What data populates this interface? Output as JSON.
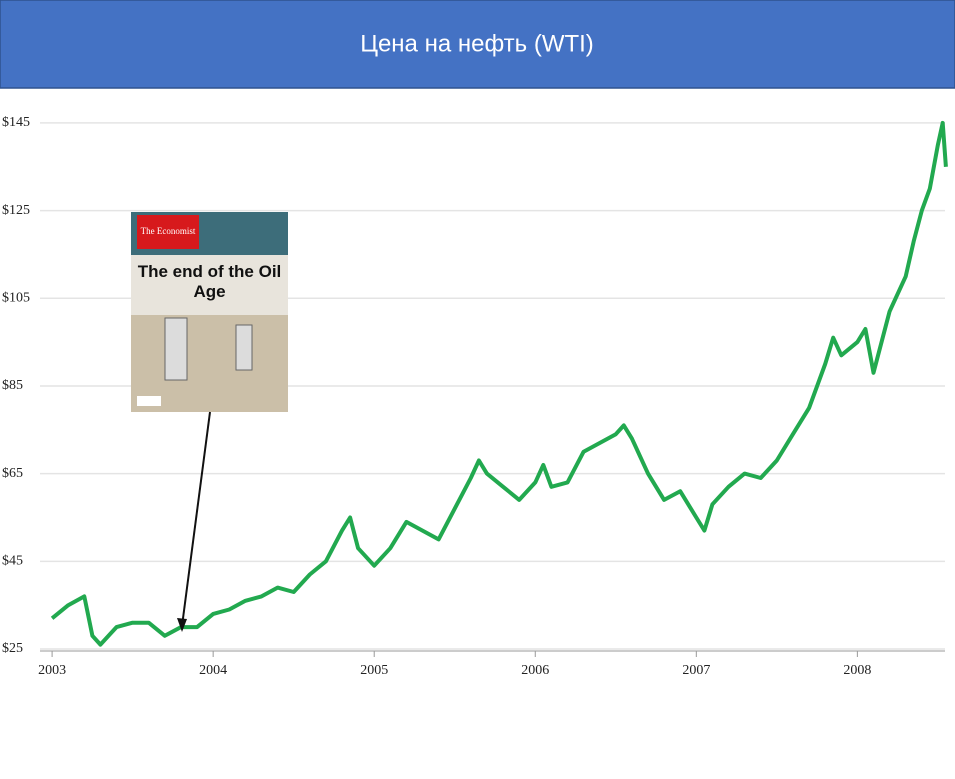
{
  "chart_data": {
    "type": "line",
    "title": "Цена на нефть (WTI)",
    "annotation": {
      "brand": "The Economist",
      "headline": "The end of the Oil Age"
    },
    "x": [
      2003.0,
      2003.1,
      2003.2,
      2003.25,
      2003.3,
      2003.4,
      2003.5,
      2003.6,
      2003.7,
      2003.8,
      2003.9,
      2004.0,
      2004.1,
      2004.2,
      2004.3,
      2004.4,
      2004.5,
      2004.6,
      2004.7,
      2004.8,
      2004.85,
      2004.9,
      2005.0,
      2005.1,
      2005.2,
      2005.3,
      2005.4,
      2005.5,
      2005.6,
      2005.65,
      2005.7,
      2005.8,
      2005.9,
      2006.0,
      2006.05,
      2006.1,
      2006.2,
      2006.3,
      2006.4,
      2006.5,
      2006.55,
      2006.6,
      2006.7,
      2006.8,
      2006.9,
      2007.0,
      2007.05,
      2007.1,
      2007.2,
      2007.3,
      2007.4,
      2007.5,
      2007.6,
      2007.7,
      2007.8,
      2007.85,
      2007.9,
      2008.0,
      2008.05,
      2008.1,
      2008.2,
      2008.3,
      2008.35,
      2008.4,
      2008.45,
      2008.5,
      2008.53,
      2008.55
    ],
    "series": [
      {
        "name": "WTI",
        "color": "#22a94f",
        "values": [
          32,
          35,
          37,
          28,
          26,
          30,
          31,
          31,
          28,
          30,
          30,
          33,
          34,
          36,
          37,
          39,
          38,
          42,
          45,
          52,
          55,
          48,
          44,
          48,
          54,
          52,
          50,
          57,
          64,
          68,
          65,
          62,
          59,
          63,
          67,
          62,
          63,
          70,
          72,
          74,
          76,
          73,
          65,
          59,
          61,
          55,
          52,
          58,
          62,
          65,
          64,
          68,
          74,
          80,
          90,
          96,
          92,
          95,
          98,
          88,
          102,
          110,
          118,
          125,
          130,
          140,
          145,
          135
        ]
      }
    ],
    "xlim": [
      2002.9,
      2008.6
    ],
    "xticks": [
      2003,
      2004,
      2005,
      2006,
      2007,
      2008
    ],
    "ylim": [
      25,
      150
    ],
    "yticks": [
      {
        "value": 25,
        "label": "$25"
      },
      {
        "value": 45,
        "label": "$45"
      },
      {
        "value": 65,
        "label": "$65"
      },
      {
        "value": 85,
        "label": "$85"
      },
      {
        "value": 105,
        "label": "$105"
      },
      {
        "value": 125,
        "label": "$125"
      },
      {
        "value": 145,
        "label": "$145"
      }
    ],
    "grid": true
  }
}
